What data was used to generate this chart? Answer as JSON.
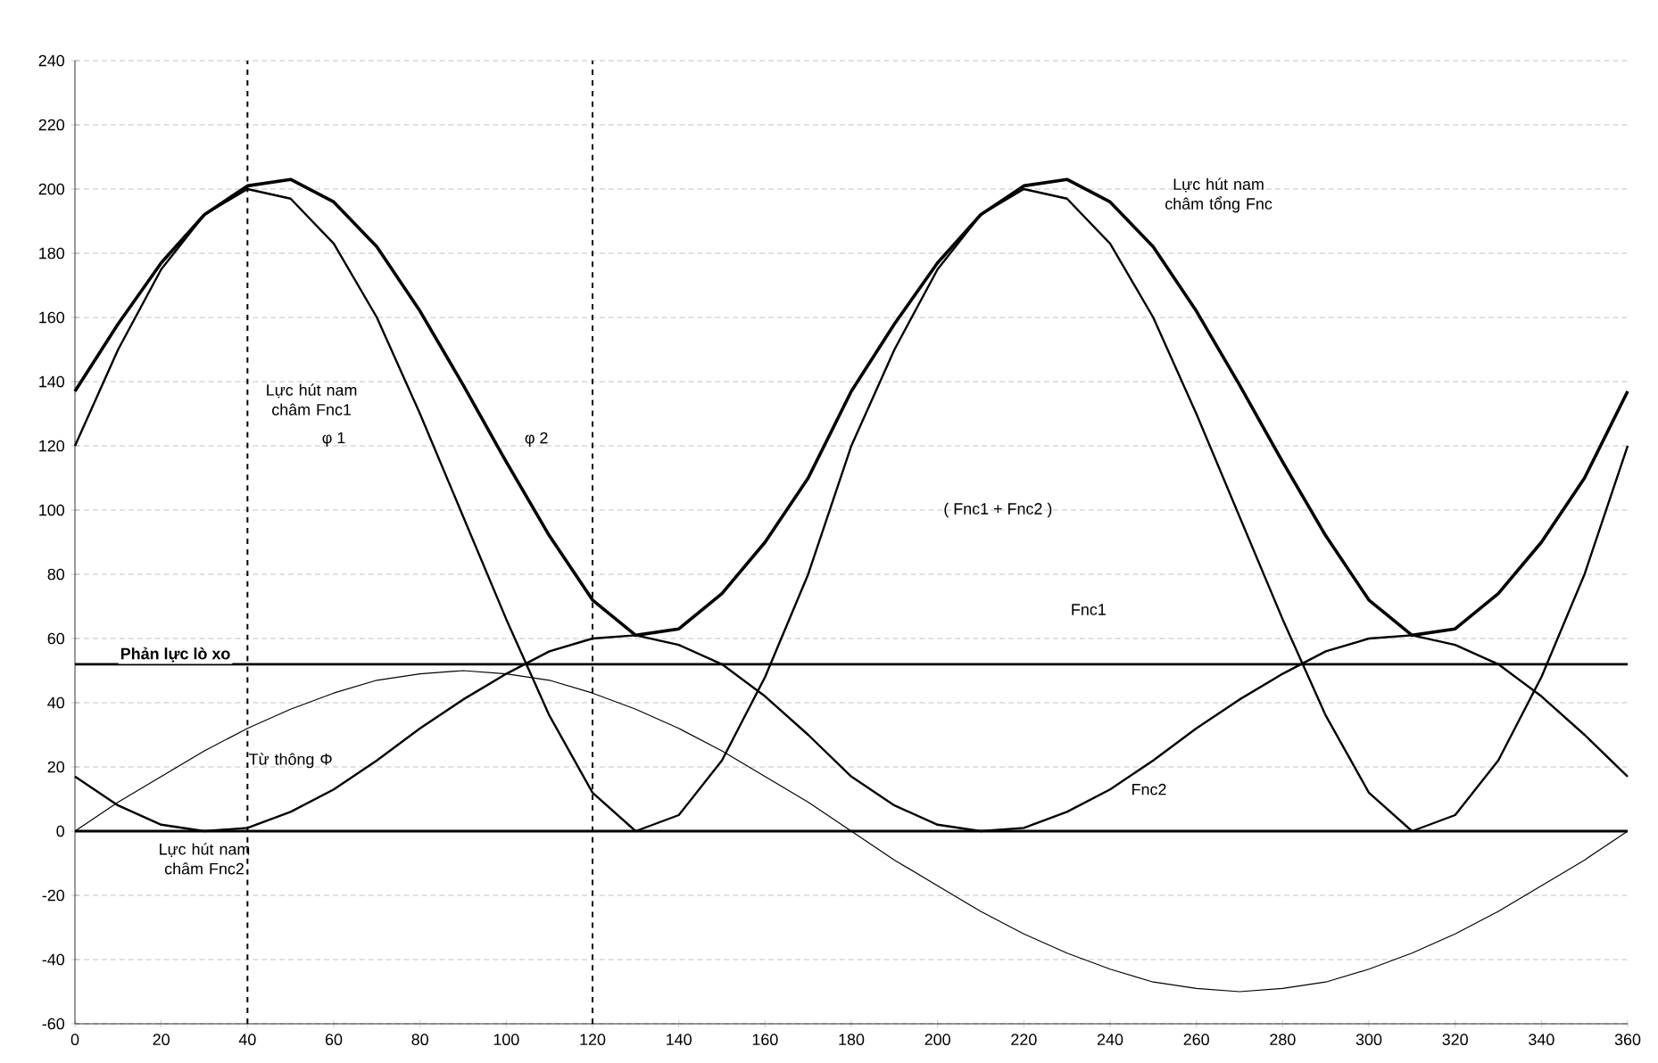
{
  "chart_data": {
    "type": "line",
    "x": [
      0,
      10,
      20,
      30,
      40,
      50,
      60,
      70,
      80,
      90,
      100,
      110,
      120,
      130,
      140,
      150,
      160,
      170,
      180,
      190,
      200,
      210,
      220,
      230,
      240,
      250,
      260,
      270,
      280,
      290,
      300,
      310,
      320,
      330,
      340,
      350,
      360
    ],
    "series": [
      {
        "name": "Lực hút nam châm tổng Fnc",
        "color": "#000000",
        "values": [
          137,
          158,
          177,
          192,
          201,
          203,
          196,
          182,
          162,
          139,
          115,
          92,
          72,
          61,
          63,
          74,
          90,
          110,
          137,
          158,
          177,
          192,
          201,
          203,
          196,
          182,
          162,
          139,
          115,
          92,
          72,
          61,
          63,
          74,
          90,
          110,
          137
        ]
      },
      {
        "name": "Lực hút nam châm Fnc1",
        "color": "#000000",
        "values": [
          120,
          150,
          175,
          192,
          200,
          197,
          183,
          160,
          130,
          98,
          66,
          36,
          12,
          0,
          5,
          22,
          48,
          80,
          120,
          150,
          175,
          192,
          200,
          197,
          183,
          160,
          130,
          98,
          66,
          36,
          12,
          0,
          5,
          22,
          48,
          80,
          120
        ]
      },
      {
        "name": "Lực hút nam châm Fnc2",
        "color": "#000000",
        "values": [
          17,
          8,
          2,
          0,
          1,
          6,
          13,
          22,
          32,
          41,
          49,
          56,
          60,
          61,
          58,
          52,
          42,
          30,
          17,
          8,
          2,
          0,
          1,
          6,
          13,
          22,
          32,
          41,
          49,
          56,
          60,
          61,
          58,
          52,
          42,
          30,
          17
        ]
      },
      {
        "name": "Từ thông Φ",
        "color": "#000000",
        "values": [
          0,
          9,
          17,
          25,
          32,
          38,
          43,
          47,
          49,
          50,
          49,
          47,
          43,
          38,
          32,
          25,
          17,
          9,
          0,
          -9,
          -17,
          -25,
          -32,
          -38,
          -43,
          -47,
          -49,
          -50,
          -49,
          -47,
          -43,
          -38,
          -32,
          -25,
          -17,
          -9,
          0
        ]
      }
    ],
    "xlim": [
      0,
      360
    ],
    "ylim": [
      -60,
      240
    ],
    "xticks": [
      0,
      20,
      40,
      60,
      80,
      100,
      120,
      140,
      160,
      180,
      200,
      220,
      240,
      260,
      280,
      300,
      320,
      340,
      360
    ],
    "yticks": [
      -60,
      -40,
      -20,
      0,
      20,
      40,
      60,
      80,
      100,
      120,
      140,
      160,
      180,
      200,
      220,
      240
    ],
    "grid": "y",
    "line_style": "solid",
    "marker": "none",
    "ref_lines": [
      {
        "axis": "y",
        "value": 52,
        "label": "Phản lực lò xo",
        "color": "#000000",
        "line_style": "solid"
      },
      {
        "axis": "y",
        "value": 0,
        "color": "#000000",
        "line_style": "solid"
      },
      {
        "axis": "x",
        "value": 40,
        "color": "#000000",
        "line_style": "dashed"
      },
      {
        "axis": "x",
        "value": 120,
        "color": "#000000",
        "line_style": "dashed"
      }
    ],
    "annotations": [
      "( Fnc1 + Fnc2 )",
      "Fnc1",
      "Fnc2",
      "φ 1",
      "φ 2"
    ]
  }
}
